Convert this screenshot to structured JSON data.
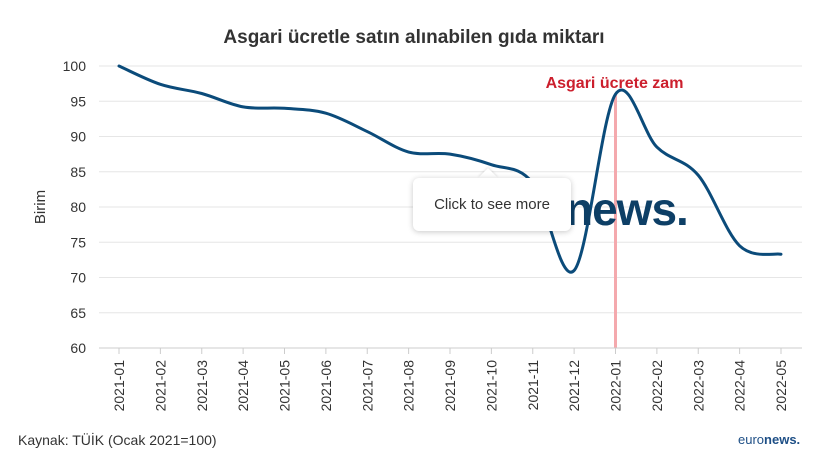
{
  "chart_data": {
    "type": "line",
    "title": "Asgari ücretle satın alınabilen gıda miktarı",
    "xlabel": "",
    "ylabel": "Birim",
    "ylim": [
      60,
      100
    ],
    "yticks": [
      60,
      65,
      70,
      75,
      80,
      85,
      90,
      95,
      100
    ],
    "x": [
      "2021-01",
      "2021-02",
      "2021-03",
      "2021-04",
      "2021-05",
      "2021-06",
      "2021-07",
      "2021-08",
      "2021-09",
      "2021-10",
      "2021-11",
      "2021-12",
      "2022-01",
      "2022-02",
      "2022-03",
      "2022-04",
      "2022-05"
    ],
    "series": [
      {
        "name": "",
        "color": "#0b4b7a",
        "values": [
          100,
          97.4,
          96.1,
          94.2,
          94.0,
          93.3,
          90.7,
          87.8,
          87.5,
          86.0,
          83.4,
          71.0,
          96.0,
          88.5,
          84.5,
          74.5,
          73.3
        ]
      }
    ],
    "annotation": {
      "text": "Asgari ücrete zam",
      "x": "2022-01",
      "color": "#cc1f2d",
      "line_color": "#f4a9ad"
    },
    "grid": true
  },
  "tooltip": {
    "text": "Click to see more"
  },
  "watermark": {
    "text": "news."
  },
  "footer": {
    "source": "Kaynak: TÜİK (Ocak 2021=100)",
    "brand_prefix": "euro",
    "brand_suffix": "news."
  }
}
